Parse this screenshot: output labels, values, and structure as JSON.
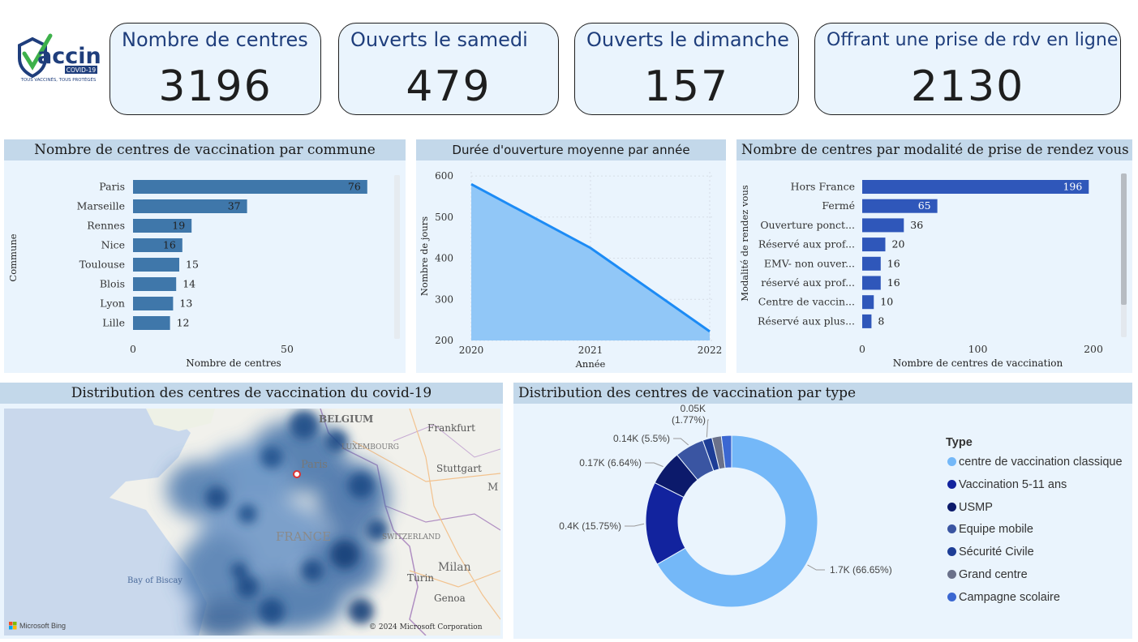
{
  "logo": {
    "word": "accin",
    "sub": "COVID-19",
    "tagline": "TOUS VACCINÉS, TOUS PROTÉGÉS"
  },
  "kpis": [
    {
      "title": "Nombre de centres",
      "value": "3196"
    },
    {
      "title": "Ouverts le samedi",
      "value": "479"
    },
    {
      "title": "Ouverts le dimanche",
      "value": "157"
    },
    {
      "title": "Offrant une prise de rdv en ligne",
      "value": "2130"
    }
  ],
  "chart_data": [
    {
      "type": "bar",
      "orientation": "horizontal",
      "title": "Nombre de centres de vaccination par commune",
      "xlabel": "Nombre de centres",
      "ylabel": "Commune",
      "categories": [
        "Paris",
        "Marseille",
        "Rennes",
        "Nice",
        "Toulouse",
        "Blois",
        "Lyon",
        "Lille"
      ],
      "values": [
        76,
        37,
        19,
        16,
        15,
        14,
        13,
        12
      ],
      "xticks": [
        "0",
        "50"
      ],
      "xlim": [
        0,
        80
      ],
      "color": "#3f77aa"
    },
    {
      "type": "area",
      "title": "Durée d'ouverture moyenne par année",
      "xlabel": "Année",
      "ylabel": "Nombre de jours",
      "x": [
        "2020",
        "2021",
        "2022"
      ],
      "values": [
        580,
        425,
        222
      ],
      "yticks": [
        "600",
        "500",
        "400",
        "300",
        "200"
      ],
      "ylim": [
        200,
        610
      ],
      "fill": "#91c7f7",
      "line": "#1c8bf5"
    },
    {
      "type": "bar",
      "orientation": "horizontal",
      "title": "Nombre de centres par modalité de prise de rendez vous",
      "xlabel": "Nombre de centres de vaccination",
      "ylabel": "Modalité de rendez vous",
      "categories": [
        "Hors France",
        "Fermé",
        "Ouverture ponct...",
        "Réservé aux prof...",
        "EMV- non ouver...",
        "réservé aux prof...",
        "Centre de vaccin...",
        "Réservé aux plus..."
      ],
      "values": [
        196,
        65,
        36,
        20,
        16,
        16,
        10,
        8
      ],
      "xticks": [
        "0",
        "100",
        "200"
      ],
      "xlim": [
        0,
        200
      ],
      "color": "#2f57ba"
    },
    {
      "type": "pie",
      "title": "Distribution des centres de vaccination par type",
      "legend_title": "Type",
      "slices": [
        {
          "name": "centre de vaccination classique",
          "value": 66.65,
          "label": "1.7K (66.65%)",
          "color": "#74b8f8"
        },
        {
          "name": "Vaccination 5-11 ans",
          "value": 15.75,
          "label": "0.4K (15.75%)",
          "color": "#12239e"
        },
        {
          "name": "USMP",
          "value": 6.64,
          "label": "0.17K (6.64%)",
          "color": "#0c1a6b"
        },
        {
          "name": "Equipe mobile",
          "value": 5.5,
          "label": "0.14K (5.5%)",
          "color": "#3a55a2"
        },
        {
          "name": "Sécurité Civile",
          "value": 1.77,
          "label": "0.05K (1.77%)",
          "color": "#1d3d96"
        },
        {
          "name": "Grand centre",
          "value": 1.77,
          "label": "",
          "color": "#6b718a"
        },
        {
          "name": "Campagne scolaire",
          "value": 1.92,
          "label": "",
          "color": "#3b67d1"
        }
      ]
    }
  ],
  "map": {
    "title": "Distribution des centres de vaccination du covid-19",
    "labels": {
      "belgium": "BELGIUM",
      "luxembourg": "LUXEMBOURG",
      "frankfurt": "Frankfurt",
      "stuttgart": "Stuttgart",
      "paris": "Paris",
      "france": "FRANCE",
      "switzerland": "SWITZERLAND",
      "milan": "Milan",
      "turin": "Turin",
      "genoa": "Genoa",
      "biscay": "Bay of Biscay",
      "m": "M"
    },
    "attribution": "© 2024 Microsoft Corporation",
    "provider": "Microsoft Bing"
  }
}
